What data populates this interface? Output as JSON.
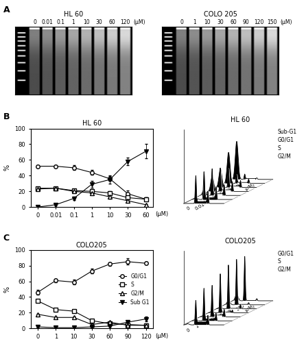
{
  "panel_labels": [
    "A",
    "B",
    "C"
  ],
  "gels": [
    {
      "title": "HL 60",
      "lanes": [
        "0",
        "0.01",
        "0.1",
        "1",
        "10",
        "30",
        "60",
        "120"
      ],
      "unit": "(μM)"
    },
    {
      "title": "COLO 205",
      "lanes": [
        "0",
        "1",
        "10",
        "30",
        "60",
        "90",
        "120",
        "150"
      ],
      "unit": "(μM)"
    }
  ],
  "chart_data": [
    {
      "type": "line",
      "title": "HL 60",
      "ylabel": "%",
      "unit": "(μM)",
      "categories": [
        "0",
        "0.01",
        "0.1",
        "1",
        "10",
        "30",
        "60"
      ],
      "ylim": [
        0,
        100
      ],
      "yticks": [
        0,
        20,
        40,
        60,
        80,
        100
      ],
      "series": [
        {
          "name": "G0/G1",
          "color": "#000000",
          "marker": "o",
          "values": [
            52,
            52,
            50,
            44,
            36,
            17,
            10
          ],
          "errors": [
            1,
            1,
            3,
            3,
            3,
            4,
            2
          ]
        },
        {
          "name": "S",
          "color": "#000000",
          "marker": "s",
          "values": [
            24,
            24,
            21,
            20,
            18,
            12,
            10
          ],
          "errors": [
            1,
            1,
            1,
            2,
            2,
            2,
            2
          ]
        },
        {
          "name": "G2/M",
          "color": "#000000",
          "marker": "^",
          "values": [
            23,
            24,
            20,
            18,
            13,
            8,
            3
          ],
          "errors": [
            1,
            1,
            1,
            2,
            2,
            2,
            1
          ]
        },
        {
          "name": "Sub G1",
          "color": "#000000",
          "marker": "v",
          "values": [
            0,
            3,
            11,
            29,
            35,
            58,
            71
          ],
          "errors": [
            1,
            1,
            2,
            4,
            5,
            5,
            9
          ]
        }
      ]
    },
    {
      "type": "histogram3d",
      "title": "HL 60",
      "unit": "(μM)",
      "categories": [
        "0",
        "0.01",
        "0.1",
        "1",
        "10",
        "30",
        "60"
      ],
      "peak_labels": [
        "Sub-G1",
        "G0/G1",
        "S",
        "G2/M"
      ]
    },
    {
      "type": "line",
      "title": "COLO205",
      "ylabel": "%",
      "unit": "(μM)",
      "categories": [
        "0",
        "1",
        "10",
        "30",
        "60",
        "90",
        "120"
      ],
      "ylim": [
        0,
        100
      ],
      "yticks": [
        0,
        20,
        40,
        60,
        80,
        100
      ],
      "legend": "center right",
      "series": [
        {
          "name": "G0/G1",
          "color": "#000000",
          "marker": "o",
          "values": [
            46,
            61,
            59,
            73,
            82,
            85,
            83
          ],
          "errors": [
            3,
            2,
            3,
            3,
            2,
            4,
            2
          ]
        },
        {
          "name": "S",
          "color": "#000000",
          "marker": "s",
          "values": [
            35,
            24,
            22,
            10,
            6,
            5,
            4
          ],
          "errors": [
            1,
            1,
            1,
            2,
            1,
            1,
            1
          ]
        },
        {
          "name": "G2/M",
          "color": "#000000",
          "marker": "^",
          "values": [
            18,
            14,
            14,
            5,
            8,
            4,
            4
          ],
          "errors": [
            1,
            1,
            1,
            1,
            1,
            1,
            1
          ]
        },
        {
          "name": "Sub G1",
          "color": "#000000",
          "marker": "v",
          "values": [
            2,
            1,
            1,
            2,
            3,
            8,
            12
          ],
          "errors": [
            1,
            1,
            1,
            1,
            1,
            2,
            3
          ]
        }
      ]
    },
    {
      "type": "histogram3d",
      "title": "COLO205",
      "unit": "(μM)",
      "categories": [
        "0",
        "1",
        "10",
        "30",
        "60",
        "90",
        "120"
      ],
      "peak_labels": [
        "G0/G1",
        "S",
        "G2/M"
      ]
    }
  ]
}
